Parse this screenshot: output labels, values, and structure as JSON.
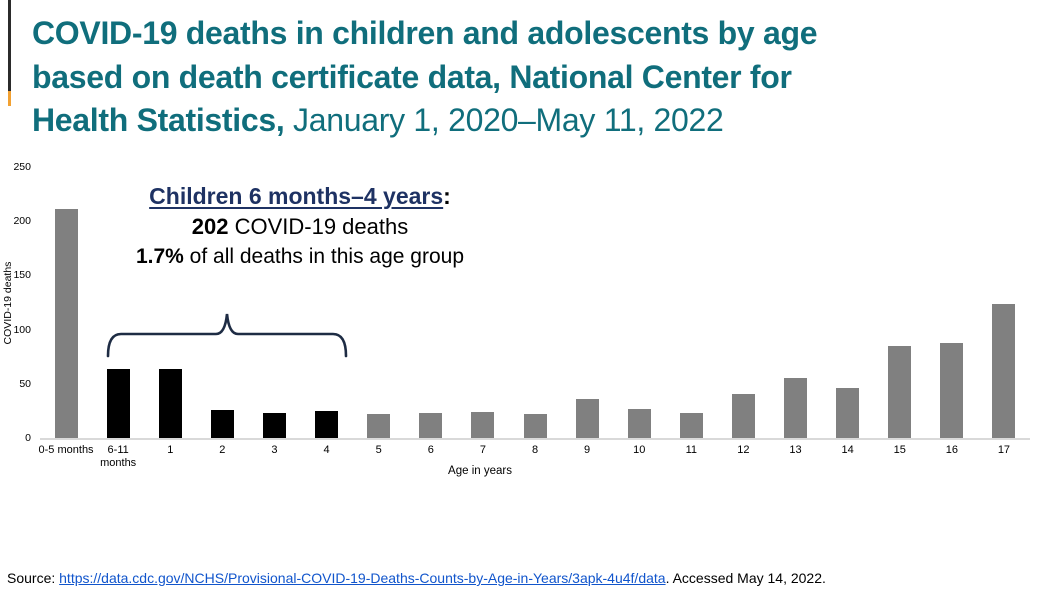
{
  "slide": {
    "title": {
      "lines": [
        {
          "bold": "COVID-19 deaths in children and adolescents by age",
          "regular": ""
        },
        {
          "bold": "based on death certificate data, National Center for",
          "regular": ""
        },
        {
          "bold": "Health Statistics,",
          "regular": " January 1, 2020–May 11, 2022"
        }
      ],
      "color": "#106e7c"
    },
    "annotation": {
      "heading": "Children 6 months–4 years",
      "heading_colon": ":",
      "heading_color": "#1e3263",
      "line2_bold": "202",
      "line2_rest": " COVID-19 deaths",
      "line3_bold": "1.7%",
      "line3_rest": " of all deaths in this age group"
    },
    "source": {
      "prefix": "Source: ",
      "link": "https://data.cdc.gov/NCHS/Provisional-COVID-19-Deaths-Counts-by-Age-in-Years/3apk-4u4f/data",
      "suffix": ". Accessed May 14, 2022.",
      "link_color": "#1155cc"
    }
  },
  "chart_data": {
    "type": "bar",
    "title": "",
    "xlabel": "Age in years",
    "ylabel": "COVID-19 deaths",
    "ylim": [
      0,
      250
    ],
    "yticks": [
      0,
      50,
      100,
      150,
      200,
      250
    ],
    "grid": false,
    "legend": false,
    "categories": [
      "0-5 months",
      "6-11 months",
      "1",
      "2",
      "3",
      "4",
      "5",
      "6",
      "7",
      "8",
      "9",
      "10",
      "11",
      "12",
      "13",
      "14",
      "15",
      "16",
      "17"
    ],
    "values": [
      211,
      64,
      64,
      26,
      23,
      25,
      22,
      23,
      24,
      22,
      36,
      27,
      23,
      41,
      55,
      46,
      85,
      88,
      124
    ],
    "default_bar_color": "#808080",
    "highlight": {
      "indexes": [
        1,
        2,
        3,
        4,
        5
      ],
      "color": "#000000",
      "label": "Children 6 months–4 years"
    }
  }
}
